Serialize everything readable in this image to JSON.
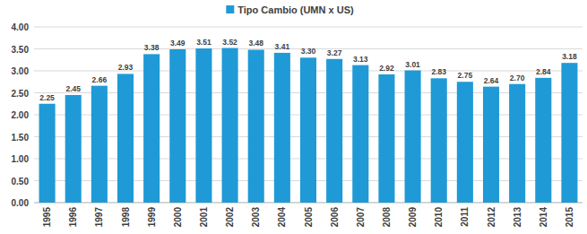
{
  "chart_data": {
    "type": "bar",
    "categories": [
      "1995",
      "1996",
      "1997",
      "1998",
      "1999",
      "2000",
      "2001",
      "2002",
      "2003",
      "2004",
      "2005",
      "2006",
      "2007",
      "2008",
      "2009",
      "2010",
      "2011",
      "2012",
      "2013",
      "2014",
      "2015"
    ],
    "series": [
      {
        "name": "Tipo Cambio (UMN x US)",
        "color": "#1f9ad6",
        "values": [
          2.25,
          2.45,
          2.66,
          2.93,
          3.38,
          3.49,
          3.51,
          3.52,
          3.48,
          3.41,
          3.3,
          3.27,
          3.13,
          2.92,
          3.01,
          2.83,
          2.75,
          2.64,
          2.7,
          2.84,
          3.18
        ],
        "value_labels": [
          "2.25",
          "2.45",
          "2.66",
          "2.93",
          "3.38",
          "3.49",
          "3.51",
          "3.52",
          "3.48",
          "3.41",
          "3.30",
          "3.27",
          "3.13",
          "2.92",
          "3.01",
          "2.83",
          "2.75",
          "2.64",
          "2.70",
          "2.84",
          "3.18"
        ]
      }
    ],
    "ylim": [
      0,
      4
    ],
    "yticks": [
      {
        "value": 0,
        "label": "0.00"
      },
      {
        "value": 0.5,
        "label": "0.50"
      },
      {
        "value": 1,
        "label": "1.00"
      },
      {
        "value": 1.5,
        "label": "1.50"
      },
      {
        "value": 2,
        "label": "2.00"
      },
      {
        "value": 2.5,
        "label": "2.50"
      },
      {
        "value": 3,
        "label": "3.00"
      },
      {
        "value": 3.5,
        "label": "3.50"
      },
      {
        "value": 4,
        "label": "4.00"
      }
    ],
    "grid": true,
    "legend": "top",
    "data_labels": true
  }
}
